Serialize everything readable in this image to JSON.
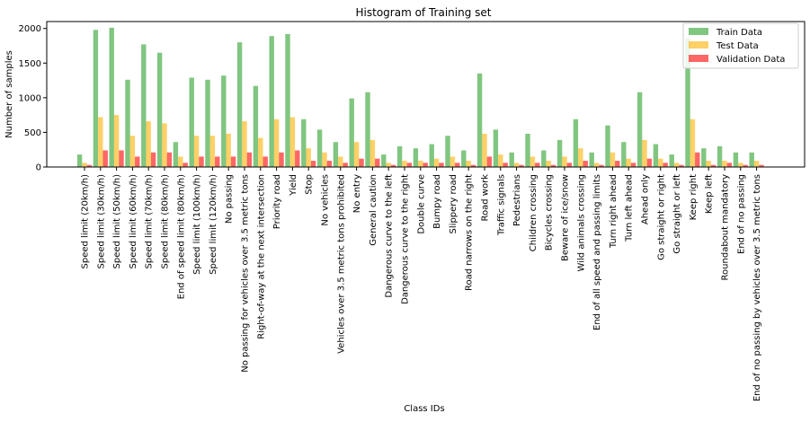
{
  "chart_data": {
    "type": "bar",
    "title": "Histogram of Training set",
    "xlabel": "Class IDs",
    "ylabel": "Number of samples",
    "ylim": [
      0,
      2100
    ],
    "yticks": [
      "0",
      "500",
      "1000",
      "1500",
      "2000"
    ],
    "grid": false,
    "legend_position": "top-right",
    "categories": [
      "Speed limit (20km/h)",
      "Speed limit (30km/h)",
      "Speed limit (50km/h)",
      "Speed limit (60km/h)",
      "Speed limit (70km/h)",
      "Speed limit (80km/h)",
      "End of speed limit (80km/h)",
      "Speed limit (100km/h)",
      "Speed limit (120km/h)",
      "No passing",
      "No passing for vehicles over 3.5 metric tons",
      "Right-of-way at the next intersection",
      "Priority road",
      "Yield",
      "Stop",
      "No vehicles",
      "Vehicles over 3.5 metric tons prohibited",
      "No entry",
      "General caution",
      "Dangerous curve to the left",
      "Dangerous curve to the right",
      "Double curve",
      "Bumpy road",
      "Slippery road",
      "Road narrows on the right",
      "Road work",
      "Traffic signals",
      "Pedestrians",
      "Children crossing",
      "Bicycles crossing",
      "Beware of ice/snow",
      "Wild animals crossing",
      "End of all speed and passing limits",
      "Turn right ahead",
      "Turn left ahead",
      "Ahead only",
      "Go straight or right",
      "Go straight or left",
      "Keep right",
      "Keep left",
      "Roundabout mandatory",
      "End of no passing",
      "End of no passing by vehicles over 3.5 metric tons"
    ],
    "series": [
      {
        "name": "Train Data",
        "color": "#2ca02c",
        "values": [
          180,
          1980,
          2010,
          1260,
          1770,
          1650,
          360,
          1290,
          1260,
          1320,
          1800,
          1170,
          1890,
          1920,
          690,
          540,
          360,
          990,
          1080,
          180,
          300,
          270,
          330,
          450,
          240,
          1350,
          540,
          210,
          480,
          240,
          390,
          690,
          210,
          600,
          360,
          1080,
          330,
          180,
          1860,
          270,
          300,
          210,
          210
        ]
      },
      {
        "name": "Test Data",
        "color": "#ffb000",
        "values": [
          60,
          720,
          750,
          450,
          660,
          630,
          150,
          450,
          450,
          480,
          660,
          420,
          690,
          720,
          270,
          210,
          150,
          360,
          390,
          60,
          90,
          90,
          120,
          150,
          90,
          480,
          180,
          60,
          150,
          90,
          150,
          270,
          60,
          210,
          120,
          390,
          120,
          60,
          690,
          90,
          90,
          60,
          90
        ]
      },
      {
        "name": "Validation Data",
        "color": "#ff0000",
        "values": [
          30,
          240,
          240,
          150,
          210,
          210,
          60,
          150,
          150,
          150,
          210,
          150,
          210,
          240,
          90,
          90,
          60,
          120,
          120,
          30,
          60,
          60,
          60,
          60,
          30,
          150,
          60,
          30,
          60,
          30,
          60,
          90,
          30,
          90,
          60,
          120,
          60,
          30,
          210,
          30,
          60,
          30,
          30
        ]
      }
    ]
  }
}
